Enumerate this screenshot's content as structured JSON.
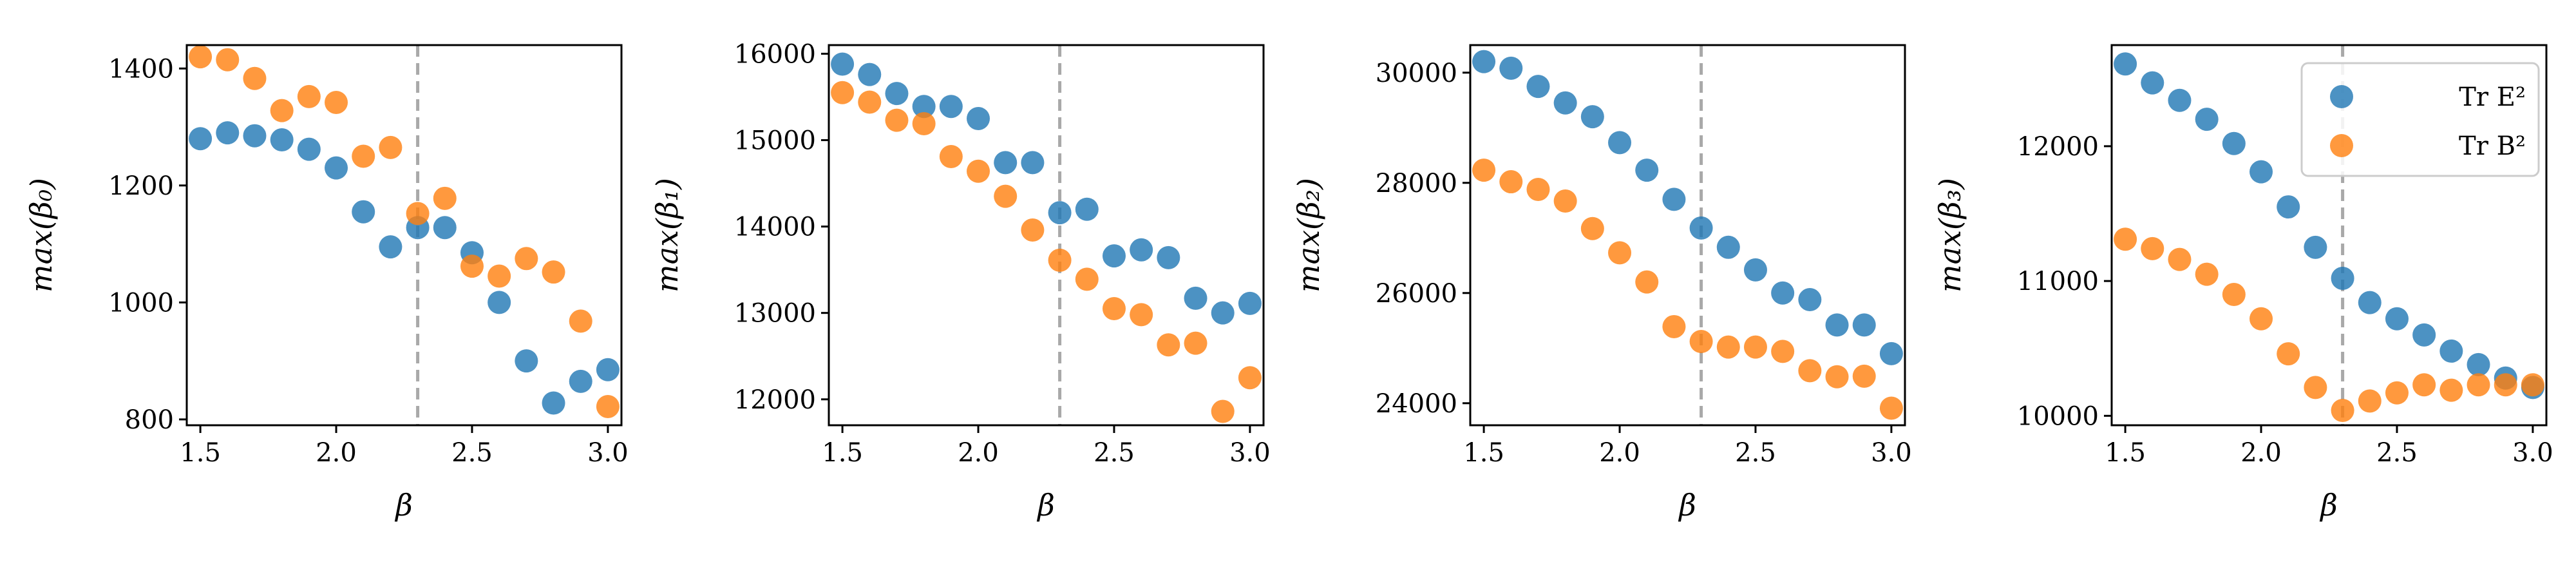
{
  "colors": {
    "E": "#1f77b4",
    "B": "#ff7f0e",
    "vline": "#a9a9a9"
  },
  "legend": {
    "placement": "top-right",
    "entries": [
      "Tr E²",
      "Tr B²"
    ]
  },
  "chart_data": [
    {
      "type": "scatter",
      "xlabel": "β",
      "ylabel": "max(β₀)",
      "xlim": [
        1.45,
        3.05
      ],
      "ylim": [
        790,
        1440
      ],
      "xticks": [
        "1.5",
        "2.0",
        "2.5",
        "3.0"
      ],
      "yticks": [
        "800",
        "1000",
        "1200",
        "1400"
      ],
      "vline": 2.3,
      "x": [
        1.5,
        1.6,
        1.7,
        1.8,
        1.9,
        2.0,
        2.1,
        2.2,
        2.3,
        2.4,
        2.5,
        2.6,
        2.7,
        2.8,
        2.9,
        3.0
      ],
      "series": [
        {
          "name": "Tr E²",
          "values": [
            1280,
            1290,
            1285,
            1278,
            1262,
            1230,
            1155,
            1095,
            1128,
            1128,
            1085,
            1000,
            900,
            828,
            865,
            885
          ]
        },
        {
          "name": "Tr B²",
          "values": [
            1420,
            1415,
            1383,
            1328,
            1352,
            1342,
            1250,
            1265,
            1152,
            1178,
            1062,
            1045,
            1075,
            1052,
            968,
            822
          ]
        }
      ]
    },
    {
      "type": "scatter",
      "xlabel": "β",
      "ylabel": "max(β₁)",
      "xlim": [
        1.45,
        3.05
      ],
      "ylim": [
        11700,
        16100
      ],
      "xticks": [
        "1.5",
        "2.0",
        "2.5",
        "3.0"
      ],
      "yticks": [
        "12000",
        "13000",
        "14000",
        "15000",
        "16000"
      ],
      "vline": 2.3,
      "x": [
        1.5,
        1.6,
        1.7,
        1.8,
        1.9,
        2.0,
        2.1,
        2.2,
        2.3,
        2.4,
        2.5,
        2.6,
        2.7,
        2.8,
        2.9,
        3.0
      ],
      "series": [
        {
          "name": "Tr E²",
          "values": [
            15880,
            15760,
            15540,
            15390,
            15390,
            15250,
            14740,
            14740,
            14160,
            14200,
            13660,
            13730,
            13640,
            13170,
            13000,
            13110
          ]
        },
        {
          "name": "Tr B²",
          "values": [
            15550,
            15440,
            15230,
            15190,
            14810,
            14640,
            14350,
            13960,
            13610,
            13390,
            13050,
            12980,
            12630,
            12650,
            11860,
            12250
          ]
        }
      ]
    },
    {
      "type": "scatter",
      "xlabel": "β",
      "ylabel": "max(β₂)",
      "xlim": [
        1.45,
        3.05
      ],
      "ylim": [
        23600,
        30500
      ],
      "xticks": [
        "1.5",
        "2.0",
        "2.5",
        "3.0"
      ],
      "yticks": [
        "24000",
        "26000",
        "28000",
        "30000"
      ],
      "vline": 2.3,
      "x": [
        1.5,
        1.6,
        1.7,
        1.8,
        1.9,
        2.0,
        2.1,
        2.2,
        2.3,
        2.4,
        2.5,
        2.6,
        2.7,
        2.8,
        2.9,
        3.0
      ],
      "series": [
        {
          "name": "Tr E²",
          "values": [
            30200,
            30080,
            29750,
            29450,
            29200,
            28730,
            28230,
            27700,
            27180,
            26830,
            26420,
            26000,
            25880,
            25420,
            25420,
            24900
          ]
        },
        {
          "name": "Tr B²",
          "values": [
            28230,
            28020,
            27880,
            27670,
            27170,
            26730,
            26200,
            25390,
            25120,
            25020,
            25020,
            24940,
            24590,
            24480,
            24490,
            23910
          ]
        }
      ]
    },
    {
      "type": "scatter",
      "xlabel": "β",
      "ylabel": "max(β₃)",
      "xlim": [
        1.45,
        3.05
      ],
      "ylim": [
        9930,
        12750
      ],
      "xticks": [
        "1.5",
        "2.0",
        "2.5",
        "3.0"
      ],
      "yticks": [
        "10000",
        "11000",
        "12000"
      ],
      "vline": 2.3,
      "x": [
        1.5,
        1.6,
        1.7,
        1.8,
        1.9,
        2.0,
        2.1,
        2.2,
        2.3,
        2.4,
        2.5,
        2.6,
        2.7,
        2.8,
        2.9,
        3.0
      ],
      "series": [
        {
          "name": "Tr E²",
          "values": [
            12610,
            12470,
            12340,
            12200,
            12020,
            11810,
            11550,
            11250,
            11020,
            10840,
            10720,
            10600,
            10480,
            10380,
            10280,
            10210
          ]
        },
        {
          "name": "Tr B²",
          "values": [
            11310,
            11240,
            11160,
            11050,
            10900,
            10720,
            10460,
            10210,
            10040,
            10110,
            10170,
            10230,
            10190,
            10230,
            10230,
            10230
          ]
        }
      ]
    }
  ]
}
